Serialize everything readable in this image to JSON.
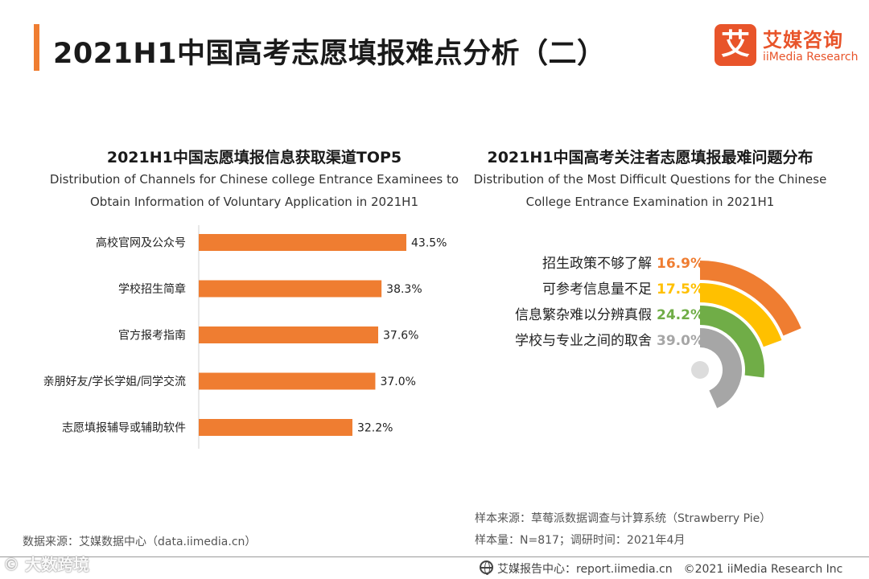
{
  "page": {
    "title": "2021H1中国高考志愿填报难点分析（二）",
    "accent_color": "#ef7d31"
  },
  "logo": {
    "mark": "艾",
    "name_cn": "艾媒咨询",
    "name_en": "iiMedia Research",
    "color": "#e8542a"
  },
  "chart_data": [
    {
      "type": "bar",
      "orientation": "horizontal",
      "title": "2021H1中国志愿填报信息获取渠道TOP5",
      "subtitle": "Distribution of Channels for Chinese college Entrance Examinees to Obtain Information of Voluntary Application in 2021H1",
      "categories": [
        "高校官网及公众号",
        "学校招生简章",
        "官方报考指南",
        "亲朋好友/学长学姐/同学交流",
        "志愿填报辅导或辅助软件"
      ],
      "values": [
        43.5,
        38.3,
        37.6,
        37.0,
        32.2
      ],
      "value_labels": [
        "43.5%",
        "38.3%",
        "37.6%",
        "37.0%",
        "32.2%"
      ],
      "unit": "%",
      "xlim": [
        0,
        50
      ],
      "grid": false,
      "bar_color": "#ef7d31"
    },
    {
      "type": "pie",
      "variant": "radial-bar",
      "title": "2021H1中国高考关注者志愿填报最难问题分布",
      "subtitle": "Distribution of the Most Difficult Questions for the Chinese College Entrance Examination in 2021H1",
      "categories": [
        "招生政策不够了解",
        "可参考信息量不足",
        "信息繁杂难以分辨真假",
        "学校与专业之间的取舍"
      ],
      "values": [
        16.9,
        17.5,
        24.2,
        39.0
      ],
      "value_labels": [
        "16.9%",
        "17.5%",
        "24.2%",
        "39.0%"
      ],
      "unit": "%",
      "colors": [
        "#ef7d31",
        "#ffc000",
        "#70ad47",
        "#a6a6a6"
      ]
    }
  ],
  "footer": {
    "data_source": "数据来源：艾媒数据中心（data.iimedia.cn）",
    "sample_source": "样本来源：草莓派数据调查与计算系统（Strawberry Pie）",
    "sample_size": "样本量：N=817；调研时间：2021年4月",
    "report_center": "艾媒报告中心：report.iimedia.cn　©2021  iiMedia Research  Inc",
    "watermark": "© 大数跨境"
  }
}
